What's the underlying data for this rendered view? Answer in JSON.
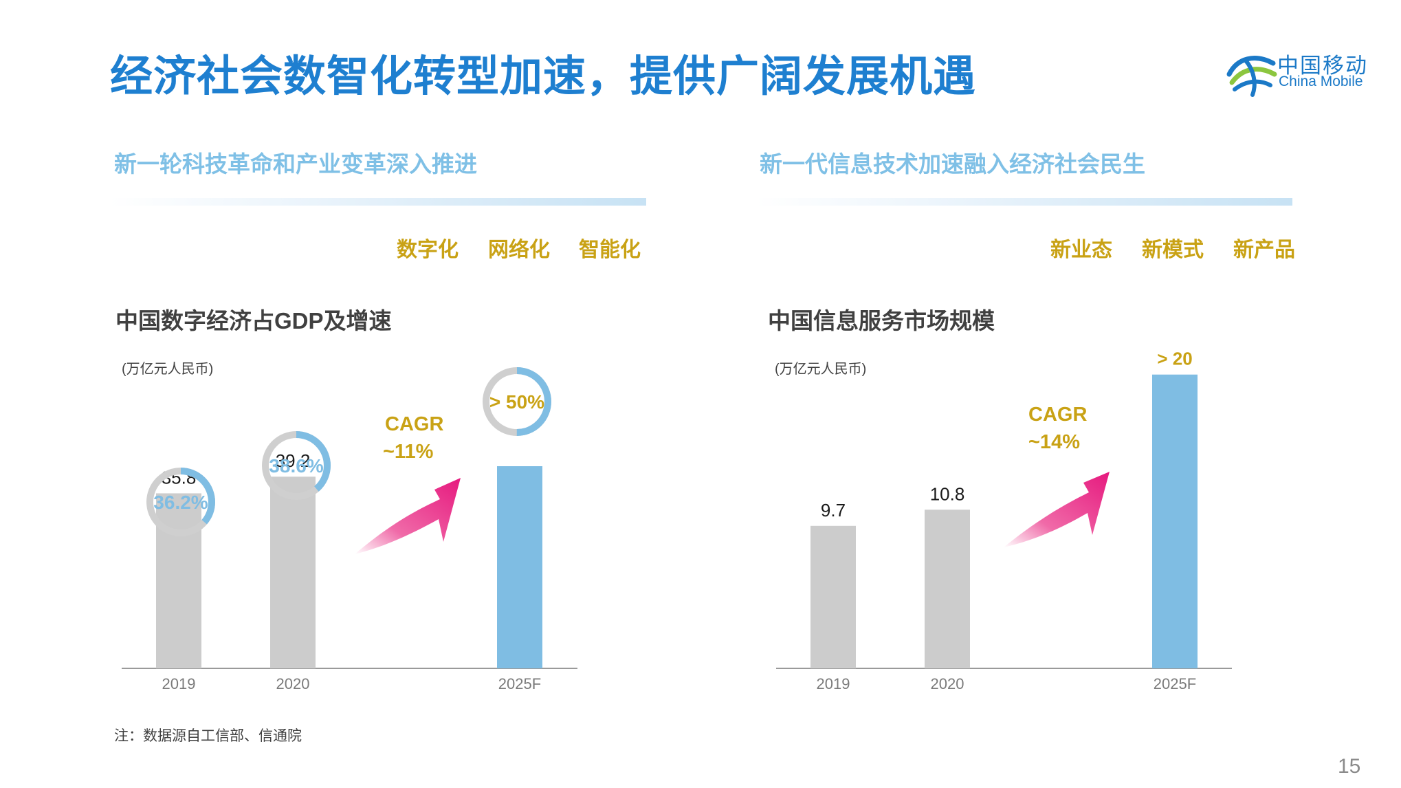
{
  "page": {
    "title": "经济社会数智化转型加速，提供广阔发展机遇",
    "logo": {
      "cn": "中国移动",
      "en": "China Mobile"
    },
    "page_number": "15",
    "note": "注：数据源自工信部、信通院",
    "colors": {
      "title": "#1e7fd0",
      "accent_blue": "#7fbde3",
      "bar_gray": "#cccccc",
      "keyword_gold": "#c9a215",
      "arrow_magenta": "#e6197e"
    }
  },
  "left_section": {
    "heading": "新一轮科技革命和产业变革深入推进",
    "keywords": [
      "数字化",
      "网络化",
      "智能化"
    ]
  },
  "right_section": {
    "heading": "新一代信息技术加速融入经济社会民生",
    "keywords": [
      "新业态",
      "新模式",
      "新产品"
    ]
  },
  "chart_data": [
    {
      "type": "bar",
      "title": "中国数字经济占GDP及增速",
      "unit": "(万亿元人民币)",
      "categories": [
        "2019",
        "2020",
        "2025F"
      ],
      "values": [
        35.8,
        39.2,
        null
      ],
      "value_labels": [
        "35.8",
        "39.2",
        ""
      ],
      "bar_colors": [
        "#cccccc",
        "#cccccc",
        "#7fbde3"
      ],
      "gdp_share": [
        {
          "label": "36.2%",
          "fraction": 0.362
        },
        {
          "label": "38.6%",
          "fraction": 0.386
        },
        {
          "label": "> 50%",
          "fraction": 0.5
        }
      ],
      "cagr": {
        "line1": "CAGR",
        "line2": "~11%"
      },
      "ylim": [
        0,
        90
      ]
    },
    {
      "type": "bar",
      "title": "中国信息服务市场规模",
      "unit": "(万亿元人民币)",
      "categories": [
        "2019",
        "2020",
        "2025F"
      ],
      "values": [
        9.7,
        10.8,
        20
      ],
      "value_labels": [
        "9.7",
        "10.8",
        "> 20"
      ],
      "bar_colors": [
        "#cccccc",
        "#cccccc",
        "#7fbde3"
      ],
      "cagr": {
        "line1": "CAGR",
        "line2": "~14%"
      },
      "ylim": [
        0,
        22
      ]
    }
  ]
}
